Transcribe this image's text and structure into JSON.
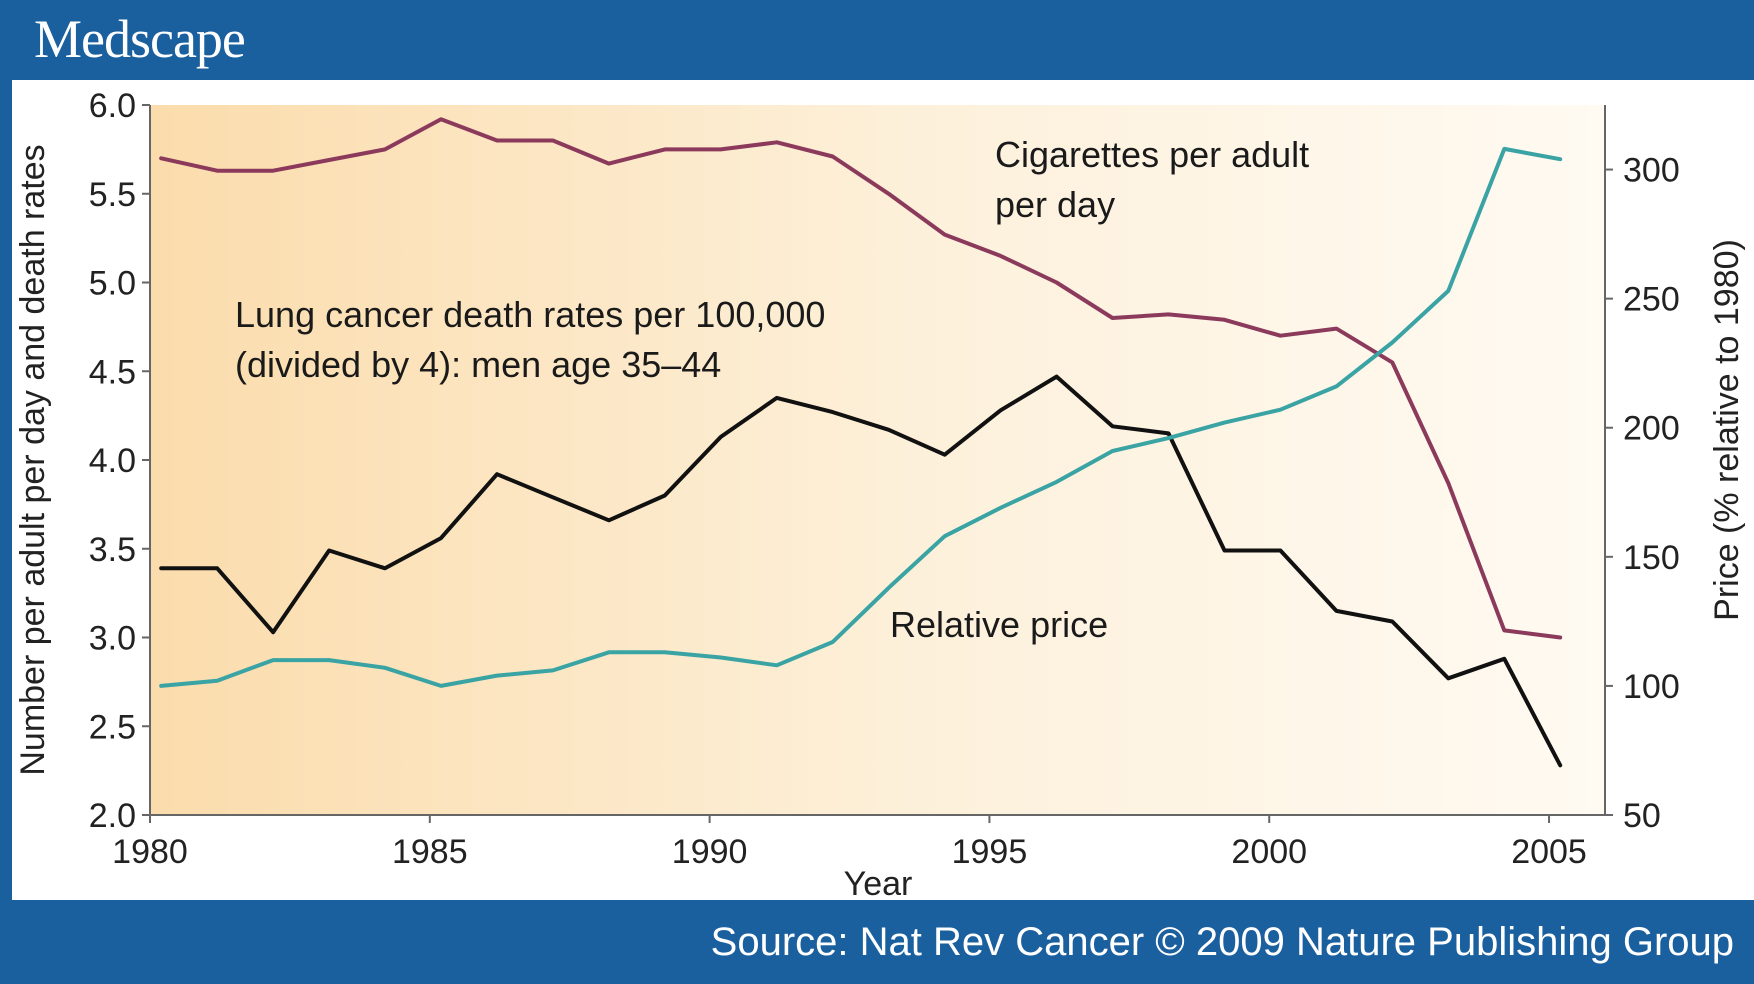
{
  "header": {
    "logo": "Medscape"
  },
  "footer": {
    "source": "Source: Nat Rev Cancer © 2009 Nature Publishing Group"
  },
  "chart_data": {
    "type": "line",
    "xlabel": "Year",
    "ylabel": "Number per adult per day and death rates",
    "y2label": "Price (% relative to 1980)",
    "xlim": [
      1980,
      2006
    ],
    "ylim": [
      2.0,
      6.0
    ],
    "y2lim": [
      50,
      325
    ],
    "x_ticks": [
      1980,
      1985,
      1990,
      1995,
      2000,
      2005
    ],
    "y_ticks": [
      "2.0",
      "2.5",
      "3.0",
      "3.5",
      "4.0",
      "4.5",
      "5.0",
      "5.5",
      "6.0"
    ],
    "y2_ticks": [
      "50",
      "100",
      "150",
      "200",
      "250",
      "300"
    ],
    "annotations": {
      "cig_line1": "Cigarettes per adult",
      "cig_line2": "per day",
      "lung_line1": "Lung cancer death rates per 100,000",
      "lung_line2": "(divided by 4): men age 35–44",
      "price": "Relative price"
    },
    "series": [
      {
        "name": "Cigarettes per adult per day",
        "axis": "left",
        "color": "#8b3a5c",
        "x": [
          1980.2,
          1981.2,
          1982.2,
          1983.2,
          1984.2,
          1985.2,
          1986.2,
          1987.2,
          1988.2,
          1989.2,
          1990.2,
          1991.2,
          1992.2,
          1993.2,
          1994.2,
          1995.2,
          1996.2,
          1997.2,
          1998.2,
          1999.2,
          2000.2,
          2001.2,
          2002.2,
          2003.2,
          2004.2,
          2005.2
        ],
        "values": [
          5.7,
          5.63,
          5.63,
          5.69,
          5.75,
          5.92,
          5.8,
          5.8,
          5.67,
          5.75,
          5.75,
          5.79,
          5.71,
          5.5,
          5.27,
          5.15,
          5.0,
          4.8,
          4.82,
          4.79,
          4.7,
          4.74,
          4.55,
          3.87,
          3.04,
          3.0
        ]
      },
      {
        "name": "Lung cancer death rates per 100,000 (divided by 4): men age 35–44",
        "axis": "left",
        "color": "#111111",
        "x": [
          1980.2,
          1981.2,
          1982.2,
          1983.2,
          1984.2,
          1985.2,
          1986.2,
          1987.2,
          1988.2,
          1989.2,
          1990.2,
          1991.2,
          1992.2,
          1993.2,
          1994.2,
          1995.2,
          1996.2,
          1997.2,
          1998.2,
          1999.2,
          2000.2,
          2001.2,
          2002.2,
          2003.2,
          2004.2,
          2005.2
        ],
        "values": [
          3.39,
          3.39,
          3.03,
          3.49,
          3.39,
          3.56,
          3.92,
          3.79,
          3.66,
          3.8,
          4.13,
          4.35,
          4.27,
          4.17,
          4.03,
          4.28,
          4.47,
          4.19,
          4.15,
          3.49,
          3.49,
          3.15,
          3.09,
          2.77,
          2.88,
          2.28
        ]
      },
      {
        "name": "Relative price",
        "axis": "right",
        "color": "#3aa3a3",
        "x": [
          1980.2,
          1981.2,
          1982.2,
          1983.2,
          1984.2,
          1985.2,
          1986.2,
          1987.2,
          1988.2,
          1989.2,
          1990.2,
          1991.2,
          1992.2,
          1993.2,
          1994.2,
          1995.2,
          1996.2,
          1997.2,
          1998.2,
          1999.2,
          2000.2,
          2001.2,
          2002.2,
          2003.2,
          2004.2,
          2005.2
        ],
        "values": [
          100,
          102,
          110,
          110,
          107,
          100,
          104,
          106,
          113,
          113,
          111,
          108,
          117,
          138,
          158,
          169,
          179,
          191,
          196,
          202,
          207,
          216,
          233,
          253,
          308,
          304
        ]
      }
    ]
  }
}
